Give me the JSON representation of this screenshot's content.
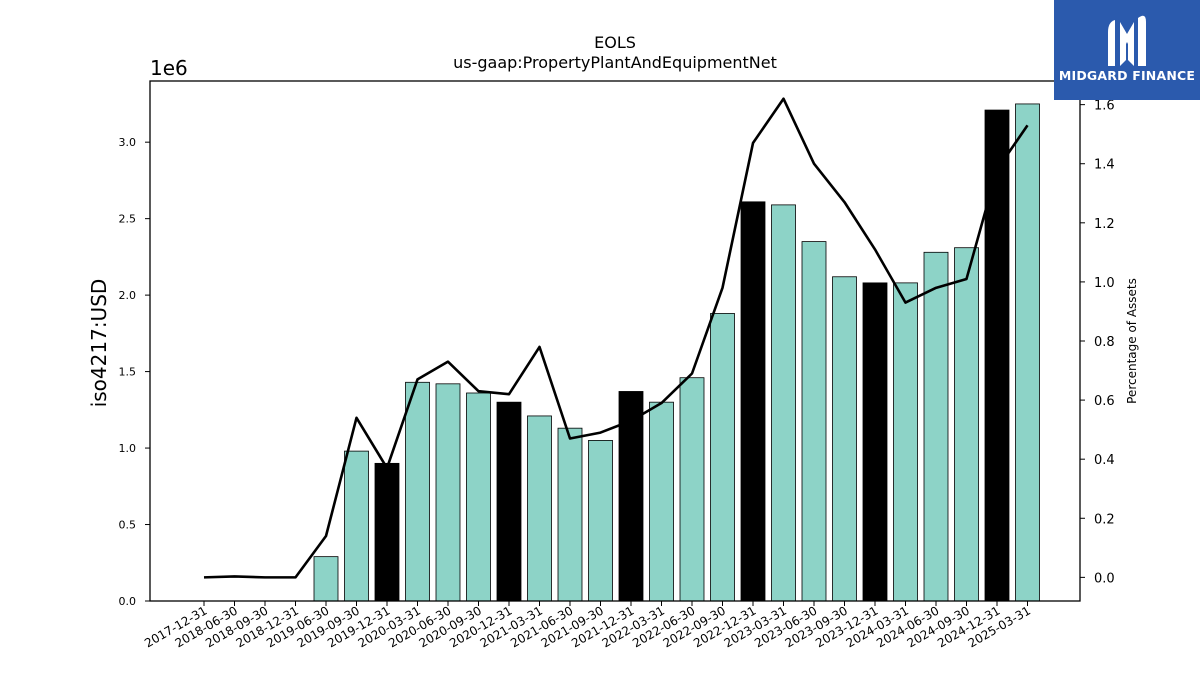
{
  "logo": {
    "text": "MIDGARD FINANCE",
    "icon": "midgard-m-icon",
    "background": "#2b5aad"
  },
  "colors": {
    "bar": "#8dd3c7",
    "bar_highlight": "#000000",
    "line": "#000000"
  },
  "chart_data": {
    "type": "bar",
    "title": "EOLS",
    "subtitle": "us-gaap:PropertyPlantAndEquipmentNet",
    "ylabel": "iso4217:USD",
    "y2label": "Percentage of Assets",
    "y_offset_text": "1e6",
    "ylim": [
      0,
      3.4
    ],
    "y2lim": [
      -0.08,
      1.68
    ],
    "yticks": [
      "0.0",
      "0.5",
      "1.0",
      "1.5",
      "2.0",
      "2.5",
      "3.0"
    ],
    "y2ticks": [
      "0.0",
      "0.2",
      "0.4",
      "0.6",
      "0.8",
      "1.0",
      "1.2",
      "1.4",
      "1.6"
    ],
    "categories": [
      "2017-12-31",
      "2018-06-30",
      "2018-09-30",
      "2018-12-31",
      "2019-06-30",
      "2019-09-30",
      "2019-12-31",
      "2020-03-31",
      "2020-06-30",
      "2020-09-30",
      "2020-12-31",
      "2021-03-31",
      "2021-06-30",
      "2021-09-30",
      "2021-12-31",
      "2022-03-31",
      "2022-06-30",
      "2022-09-30",
      "2022-12-31",
      "2023-03-31",
      "2023-06-30",
      "2023-09-30",
      "2023-12-31",
      "2024-03-31",
      "2024-06-30",
      "2024-09-30",
      "2024-12-31",
      "2025-03-31"
    ],
    "series": [
      {
        "type": "bar",
        "values": [
          0,
          0,
          0,
          0,
          0.29,
          0.98,
          0.9,
          1.43,
          1.42,
          1.36,
          1.3,
          1.21,
          1.13,
          1.05,
          1.37,
          1.3,
          1.46,
          1.88,
          2.61,
          2.59,
          2.35,
          2.12,
          2.08,
          2.08,
          2.28,
          2.31,
          3.21,
          3.25
        ],
        "highlight": [
          false,
          false,
          false,
          false,
          false,
          false,
          true,
          false,
          false,
          false,
          true,
          false,
          false,
          false,
          true,
          false,
          false,
          false,
          true,
          false,
          false,
          false,
          true,
          false,
          false,
          false,
          true,
          false
        ]
      },
      {
        "type": "line",
        "axis": "right",
        "values": [
          0.0,
          0.003,
          0.0,
          0.0,
          0.14,
          0.54,
          0.37,
          0.67,
          0.73,
          0.63,
          0.62,
          0.78,
          0.47,
          0.49,
          0.53,
          0.59,
          0.69,
          0.98,
          1.47,
          1.62,
          1.4,
          1.27,
          1.11,
          0.93,
          0.98,
          1.01,
          1.38,
          1.53
        ]
      }
    ]
  }
}
